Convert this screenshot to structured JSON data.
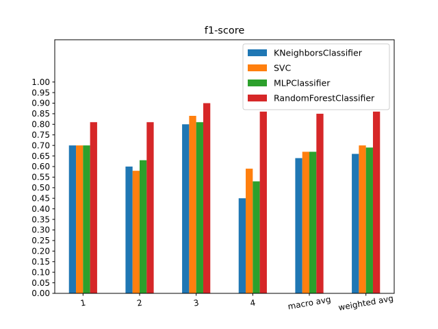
{
  "chart_data": {
    "type": "bar",
    "title": "f1-score",
    "xlabel": "",
    "ylabel": "",
    "categories": [
      "1",
      "2",
      "3",
      "4",
      "macro avg",
      "weighted avg"
    ],
    "series": [
      {
        "name": "KNeighborsClassifier",
        "color": "#1f77b4",
        "values": [
          0.7,
          0.6,
          0.8,
          0.45,
          0.64,
          0.66
        ]
      },
      {
        "name": "SVC",
        "color": "#ff7f0e",
        "values": [
          0.7,
          0.58,
          0.84,
          0.59,
          0.67,
          0.7
        ]
      },
      {
        "name": "MLPClassifier",
        "color": "#2ca02c",
        "values": [
          0.7,
          0.63,
          0.81,
          0.53,
          0.67,
          0.69
        ]
      },
      {
        "name": "RandomForestClassifier",
        "color": "#d62728",
        "values": [
          0.81,
          0.81,
          0.9,
          0.86,
          0.85,
          0.86
        ]
      }
    ],
    "ylim": [
      0,
      1.2
    ],
    "yticks": [
      "0.00",
      "0.05",
      "0.10",
      "0.15",
      "0.20",
      "0.25",
      "0.30",
      "0.35",
      "0.40",
      "0.45",
      "0.50",
      "0.55",
      "0.60",
      "0.65",
      "0.70",
      "0.75",
      "0.80",
      "0.85",
      "0.90",
      "0.95",
      "1.00"
    ],
    "x_tick_rotation_deg": -10,
    "grid": false,
    "legend_position": "upper right"
  }
}
